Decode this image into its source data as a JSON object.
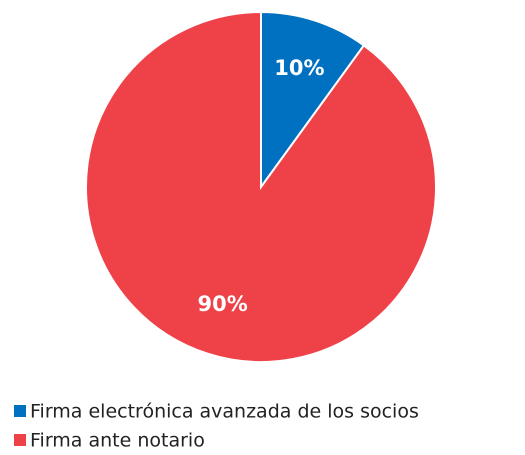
{
  "chart_data": {
    "type": "pie",
    "categories": [
      "Firma electrónica avanzada de los socios",
      "Firma ante notario"
    ],
    "values": [
      10,
      90
    ],
    "value_labels": [
      "10%",
      "90%"
    ],
    "colors": [
      "#0070c0",
      "#ef4148"
    ],
    "legend": "bottom-left"
  }
}
